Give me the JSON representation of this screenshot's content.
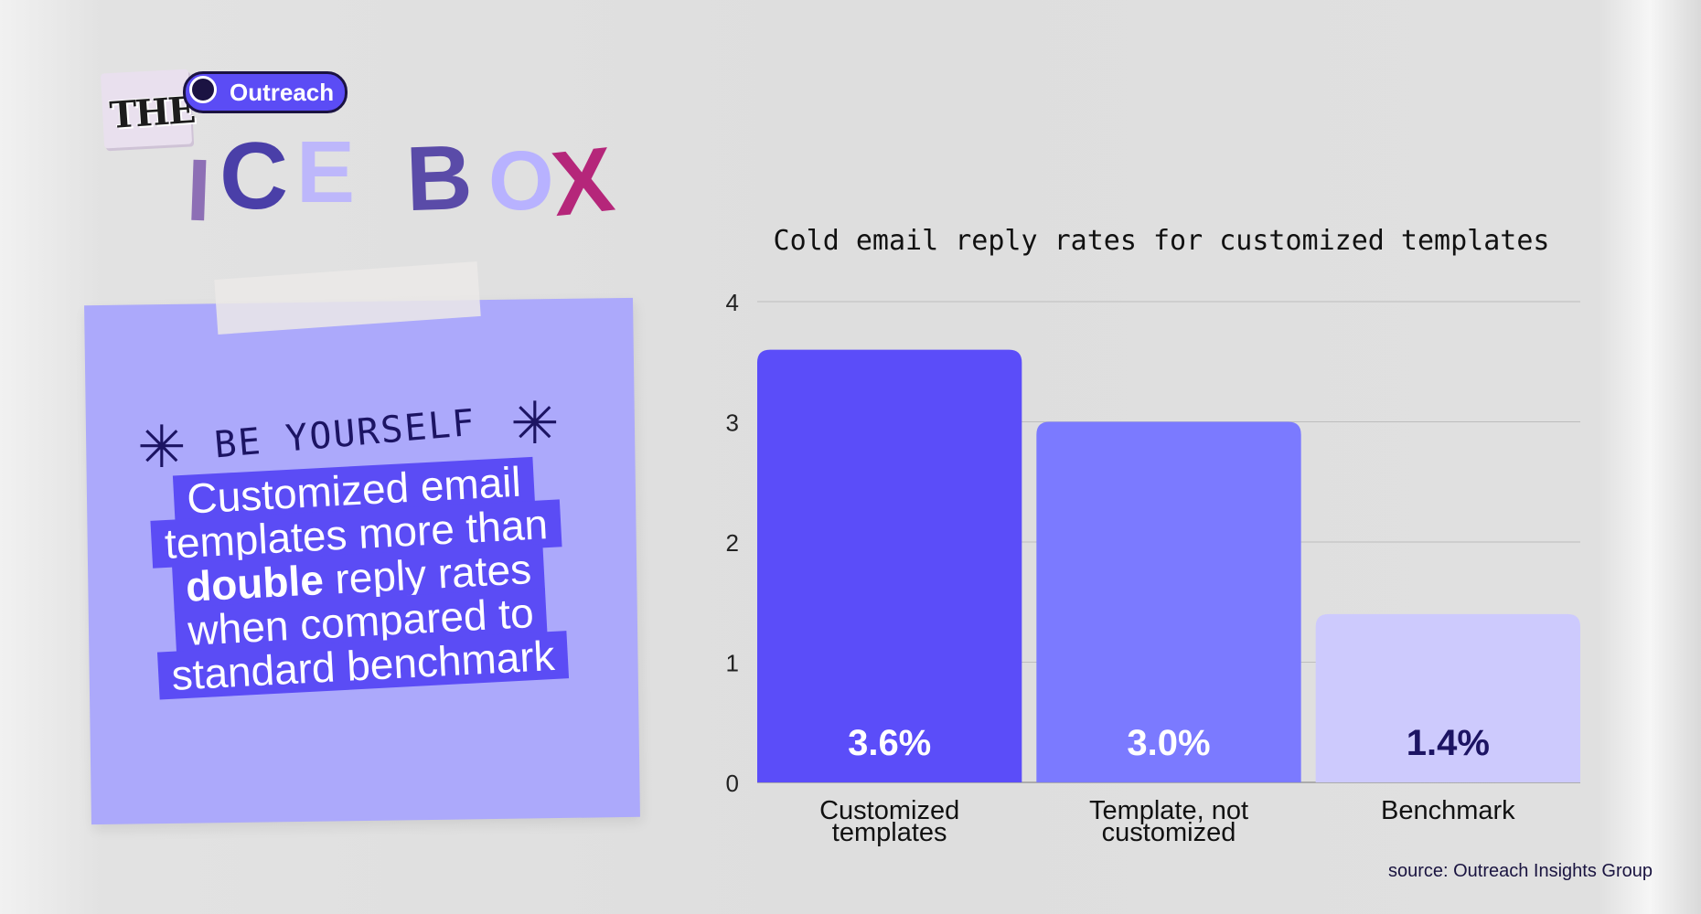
{
  "logo": {
    "brand": "Outreach",
    "the": "THE",
    "letters": [
      "I",
      "C",
      "E",
      "B",
      "O",
      "X"
    ]
  },
  "note": {
    "tagline": "BE YOURSELF",
    "headline_lines": [
      {
        "pre": "Customized email",
        "bold": "",
        "post": ""
      },
      {
        "pre": "templates more than",
        "bold": "",
        "post": ""
      },
      {
        "pre": "",
        "bold": "double",
        "post": " reply rates"
      },
      {
        "pre": "when compared to",
        "bold": "",
        "post": ""
      },
      {
        "pre": "standard benchmark",
        "bold": "",
        "post": ""
      }
    ]
  },
  "chart_data": {
    "type": "bar",
    "title": "Cold email reply rates for customized templates",
    "categories": [
      [
        "Customized",
        "templates"
      ],
      [
        "Template, not",
        "customized"
      ],
      [
        "Benchmark"
      ]
    ],
    "values": [
      3.6,
      3.0,
      1.4
    ],
    "data_labels": [
      "3.6%",
      "3.0%",
      "1.4%"
    ],
    "colors": [
      "#5b4df9",
      "#7b7aff",
      "#cdcafd"
    ],
    "label_colors": [
      "#ffffff",
      "#ffffff",
      "#1c1463"
    ],
    "ylim": [
      0,
      4
    ],
    "yticks": [
      0,
      1,
      2,
      3,
      4
    ],
    "grid": true,
    "xlabel": "",
    "ylabel": ""
  },
  "source": "source: Outreach Insights Group"
}
